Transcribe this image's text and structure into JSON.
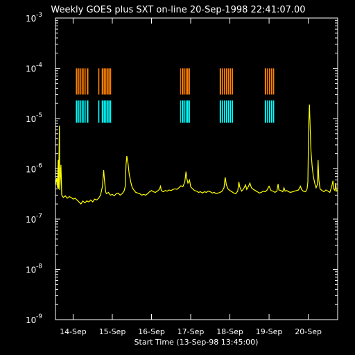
{
  "chart_data": {
    "type": "line",
    "title": "Weekly GOES plus SXT on-line 20-Sep-1998 22:41:07.00",
    "xlabel": "Start Time (13-Sep-98 13:45:00)",
    "ylabel": "",
    "scale": "log",
    "grid": false,
    "xlim": [
      0,
      7.2
    ],
    "ylim": [
      1e-09,
      0.001
    ],
    "x_ticks": [
      {
        "x": 0.45,
        "label": "14-Sep"
      },
      {
        "x": 1.45,
        "label": "15-Sep"
      },
      {
        "x": 2.45,
        "label": "16-Sep"
      },
      {
        "x": 3.45,
        "label": "17-Sep"
      },
      {
        "x": 4.45,
        "label": "18-Sep"
      },
      {
        "x": 5.45,
        "label": "19-Sep"
      },
      {
        "x": 6.45,
        "label": "20-Sep"
      }
    ],
    "y_ticks": [
      {
        "value": 0.001,
        "base": "10",
        "exp": "-3"
      },
      {
        "value": 0.0001,
        "base": "10",
        "exp": "-4"
      },
      {
        "value": 1e-05,
        "base": "10",
        "exp": "-5"
      },
      {
        "value": 1e-06,
        "base": "10",
        "exp": "-6"
      },
      {
        "value": 1e-07,
        "base": "10",
        "exp": "-7"
      },
      {
        "value": 1e-08,
        "base": "10",
        "exp": "-8"
      },
      {
        "value": 1e-09,
        "base": "10",
        "exp": "-9"
      }
    ],
    "series": [
      {
        "color": "#ffff00",
        "points": [
          [
            0.0,
            4.8e-07
          ],
          [
            0.03,
            6.5e-07
          ],
          [
            0.05,
            4.2e-07
          ],
          [
            0.07,
            1.5e-06
          ],
          [
            0.08,
            4e-07
          ],
          [
            0.1,
            7.2e-06
          ],
          [
            0.11,
            3.8e-07
          ],
          [
            0.14,
            1.2e-06
          ],
          [
            0.16,
            3e-07
          ],
          [
            0.2,
            2.7e-07
          ],
          [
            0.25,
            2.9e-07
          ],
          [
            0.3,
            2.6e-07
          ],
          [
            0.35,
            2.8e-07
          ],
          [
            0.4,
            2.7e-07
          ],
          [
            0.45,
            2.5e-07
          ],
          [
            0.5,
            2.6e-07
          ],
          [
            0.55,
            2.4e-07
          ],
          [
            0.6,
            2.2e-07
          ],
          [
            0.65,
            2e-07
          ],
          [
            0.7,
            2.3e-07
          ],
          [
            0.75,
            2.1e-07
          ],
          [
            0.8,
            2.3e-07
          ],
          [
            0.85,
            2.2e-07
          ],
          [
            0.9,
            2.4e-07
          ],
          [
            0.95,
            2.2e-07
          ],
          [
            1.0,
            2.5e-07
          ],
          [
            1.05,
            2.4e-07
          ],
          [
            1.1,
            2.6e-07
          ],
          [
            1.15,
            3e-07
          ],
          [
            1.2,
            4.5e-07
          ],
          [
            1.23,
            9.5e-07
          ],
          [
            1.25,
            6e-07
          ],
          [
            1.28,
            3.5e-07
          ],
          [
            1.3,
            3.2e-07
          ],
          [
            1.35,
            3.4e-07
          ],
          [
            1.4,
            3e-07
          ],
          [
            1.45,
            3.1e-07
          ],
          [
            1.5,
            2.9e-07
          ],
          [
            1.55,
            3.2e-07
          ],
          [
            1.6,
            3.3e-07
          ],
          [
            1.65,
            3e-07
          ],
          [
            1.7,
            3.2e-07
          ],
          [
            1.75,
            3.6e-07
          ],
          [
            1.78,
            4.5e-07
          ],
          [
            1.8,
            1.2e-06
          ],
          [
            1.82,
            1.8e-06
          ],
          [
            1.85,
            1.3e-06
          ],
          [
            1.88,
            8e-07
          ],
          [
            1.92,
            5.5e-07
          ],
          [
            1.96,
            4.2e-07
          ],
          [
            2.0,
            3.8e-07
          ],
          [
            2.05,
            3.4e-07
          ],
          [
            2.1,
            3.3e-07
          ],
          [
            2.15,
            3.2e-07
          ],
          [
            2.2,
            3e-07
          ],
          [
            2.25,
            3.1e-07
          ],
          [
            2.3,
            3e-07
          ],
          [
            2.35,
            3.2e-07
          ],
          [
            2.4,
            3.5e-07
          ],
          [
            2.45,
            3.7e-07
          ],
          [
            2.5,
            3.5e-07
          ],
          [
            2.55,
            3.4e-07
          ],
          [
            2.6,
            3.6e-07
          ],
          [
            2.65,
            3.9e-07
          ],
          [
            2.68,
            4.5e-07
          ],
          [
            2.7,
            3.7e-07
          ],
          [
            2.75,
            3.5e-07
          ],
          [
            2.8,
            3.7e-07
          ],
          [
            2.85,
            3.6e-07
          ],
          [
            2.9,
            3.8e-07
          ],
          [
            2.95,
            3.7e-07
          ],
          [
            3.0,
            3.9e-07
          ],
          [
            3.05,
            4e-07
          ],
          [
            3.1,
            3.9e-07
          ],
          [
            3.15,
            4.2e-07
          ],
          [
            3.2,
            4.6e-07
          ],
          [
            3.25,
            4.4e-07
          ],
          [
            3.3,
            5.5e-07
          ],
          [
            3.33,
            8.8e-07
          ],
          [
            3.35,
            6.5e-07
          ],
          [
            3.38,
            5.2e-07
          ],
          [
            3.42,
            6e-07
          ],
          [
            3.45,
            4.4e-07
          ],
          [
            3.5,
            4e-07
          ],
          [
            3.55,
            3.7e-07
          ],
          [
            3.6,
            3.6e-07
          ],
          [
            3.65,
            3.4e-07
          ],
          [
            3.7,
            3.5e-07
          ],
          [
            3.75,
            3.3e-07
          ],
          [
            3.8,
            3.5e-07
          ],
          [
            3.85,
            3.4e-07
          ],
          [
            3.9,
            3.6e-07
          ],
          [
            3.95,
            3.5e-07
          ],
          [
            4.0,
            3.3e-07
          ],
          [
            4.05,
            3.4e-07
          ],
          [
            4.1,
            3.2e-07
          ],
          [
            4.15,
            3.3e-07
          ],
          [
            4.2,
            3.4e-07
          ],
          [
            4.25,
            3.6e-07
          ],
          [
            4.3,
            4.2e-07
          ],
          [
            4.33,
            6.8e-07
          ],
          [
            4.36,
            4.8e-07
          ],
          [
            4.4,
            4e-07
          ],
          [
            4.45,
            3.7e-07
          ],
          [
            4.5,
            3.5e-07
          ],
          [
            4.55,
            3.3e-07
          ],
          [
            4.6,
            3.2e-07
          ],
          [
            4.65,
            3.6e-07
          ],
          [
            4.68,
            5.5e-07
          ],
          [
            4.7,
            4.4e-07
          ],
          [
            4.75,
            3.6e-07
          ],
          [
            4.8,
            4e-07
          ],
          [
            4.85,
            4.8e-07
          ],
          [
            4.88,
            3.9e-07
          ],
          [
            4.92,
            4.4e-07
          ],
          [
            4.96,
            5.2e-07
          ],
          [
            5.0,
            4.2e-07
          ],
          [
            5.05,
            3.9e-07
          ],
          [
            5.1,
            3.7e-07
          ],
          [
            5.15,
            3.5e-07
          ],
          [
            5.2,
            3.3e-07
          ],
          [
            5.25,
            3.4e-07
          ],
          [
            5.3,
            3.6e-07
          ],
          [
            5.35,
            3.5e-07
          ],
          [
            5.4,
            3.8e-07
          ],
          [
            5.45,
            4.5e-07
          ],
          [
            5.5,
            3.7e-07
          ],
          [
            5.55,
            3.6e-07
          ],
          [
            5.6,
            3.4e-07
          ],
          [
            5.65,
            3.6e-07
          ],
          [
            5.68,
            5e-07
          ],
          [
            5.7,
            3.8e-07
          ],
          [
            5.75,
            3.7e-07
          ],
          [
            5.8,
            3.5e-07
          ],
          [
            5.83,
            4.2e-07
          ],
          [
            5.86,
            3.6e-07
          ],
          [
            5.9,
            3.7e-07
          ],
          [
            5.95,
            3.5e-07
          ],
          [
            6.0,
            3.4e-07
          ],
          [
            6.05,
            3.5e-07
          ],
          [
            6.1,
            3.6e-07
          ],
          [
            6.15,
            3.7e-07
          ],
          [
            6.2,
            3.8e-07
          ],
          [
            6.25,
            4.5e-07
          ],
          [
            6.28,
            3.9e-07
          ],
          [
            6.32,
            3.6e-07
          ],
          [
            6.38,
            3.5e-07
          ],
          [
            6.42,
            4e-07
          ],
          [
            6.44,
            5.5e-07
          ],
          [
            6.46,
            7e-06
          ],
          [
            6.48,
            1.9e-05
          ],
          [
            6.5,
            6e-06
          ],
          [
            6.52,
            2.2e-06
          ],
          [
            6.55,
            1.1e-06
          ],
          [
            6.58,
            7e-07
          ],
          [
            6.62,
            5e-07
          ],
          [
            6.65,
            4.2e-07
          ],
          [
            6.68,
            4.8e-07
          ],
          [
            6.7,
            1.5e-06
          ],
          [
            6.72,
            6e-07
          ],
          [
            6.75,
            4e-07
          ],
          [
            6.8,
            3.7e-07
          ],
          [
            6.85,
            3.5e-07
          ],
          [
            6.9,
            3.8e-07
          ],
          [
            6.95,
            3.6e-07
          ],
          [
            7.0,
            3.4e-07
          ],
          [
            7.05,
            4.5e-07
          ],
          [
            7.08,
            5.8e-07
          ],
          [
            7.1,
            4e-07
          ],
          [
            7.13,
            3.7e-07
          ],
          [
            7.15,
            5.2e-07
          ],
          [
            7.17,
            3.6e-07
          ],
          [
            7.2,
            3.7e-07
          ]
        ]
      }
    ],
    "sxt_coverage": [
      {
        "name": "orange",
        "color": "#ff8000",
        "y_low": 3e-05,
        "y_high": 0.0001
      },
      {
        "name": "cyan",
        "color": "#00ffff",
        "y_low": 8.3e-06,
        "y_high": 2.3e-05
      }
    ],
    "sxt_intervals": [
      [
        0.52,
        0.56
      ],
      [
        0.58,
        0.61
      ],
      [
        0.63,
        0.66
      ],
      [
        0.68,
        0.72
      ],
      [
        0.74,
        0.77
      ],
      [
        0.8,
        0.84
      ],
      [
        1.09,
        1.12
      ],
      [
        1.18,
        1.22
      ],
      [
        1.23,
        1.26
      ],
      [
        1.27,
        1.3
      ],
      [
        1.31,
        1.34
      ],
      [
        1.35,
        1.38
      ],
      [
        1.39,
        1.42
      ],
      [
        3.18,
        3.2
      ],
      [
        3.22,
        3.26
      ],
      [
        3.27,
        3.3
      ],
      [
        3.32,
        3.35
      ],
      [
        3.36,
        3.39
      ],
      [
        3.4,
        3.43
      ],
      [
        4.19,
        4.23
      ],
      [
        4.25,
        4.28
      ],
      [
        4.3,
        4.33
      ],
      [
        4.35,
        4.38
      ],
      [
        4.4,
        4.43
      ],
      [
        4.45,
        4.48
      ],
      [
        4.5,
        4.53
      ],
      [
        5.34,
        5.38
      ],
      [
        5.4,
        5.43
      ],
      [
        5.45,
        5.48
      ],
      [
        5.5,
        5.53
      ],
      [
        5.55,
        5.58
      ]
    ]
  }
}
